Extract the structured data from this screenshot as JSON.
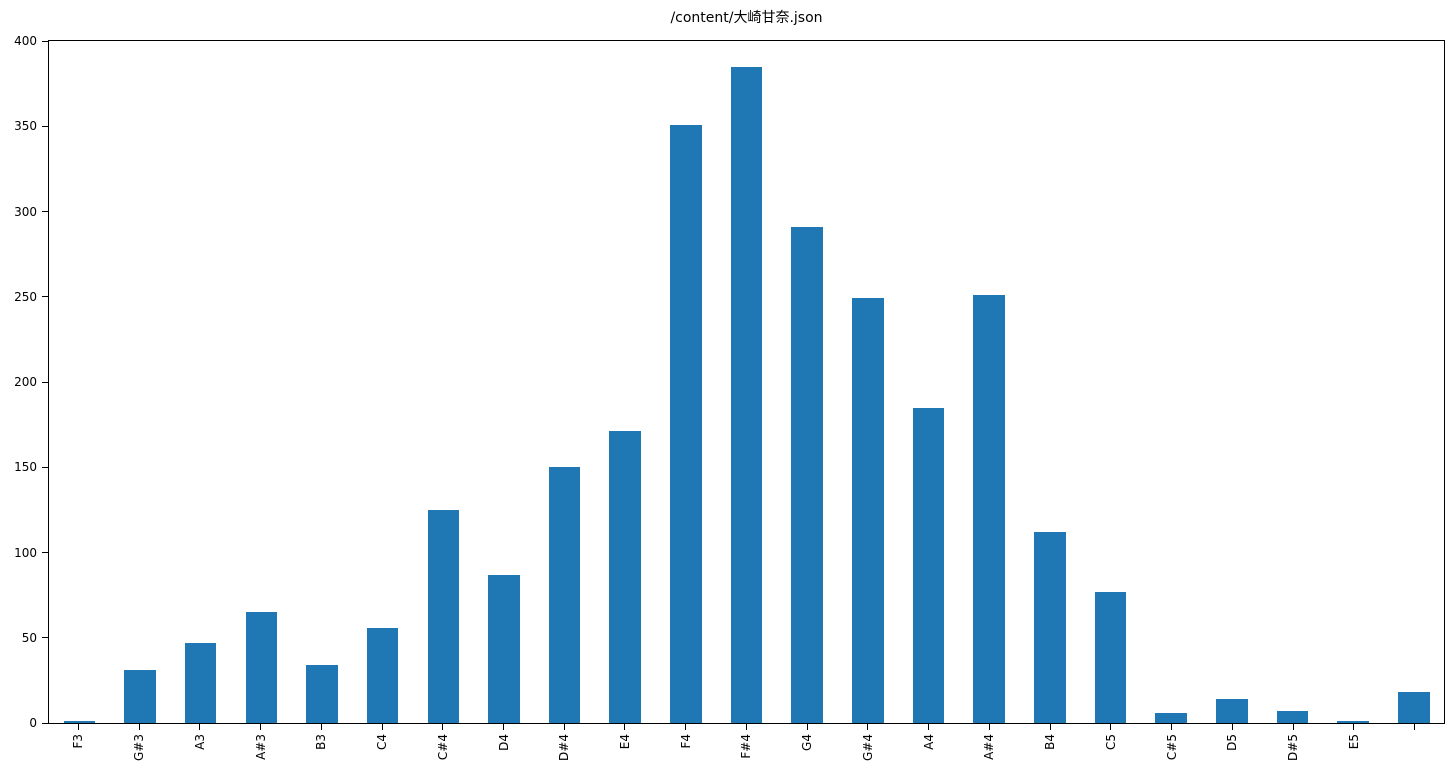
{
  "chart_data": {
    "type": "bar",
    "title": "/content/大崎甘奈.json",
    "categories": [
      "F3",
      "G#3",
      "A3",
      "A#3",
      "B3",
      "C4",
      "C#4",
      "D4",
      "D#4",
      "E4",
      "F4",
      "F#4",
      "G4",
      "G#4",
      "A4",
      "A#4",
      "B4",
      "C5",
      "C#5",
      "D5",
      "D#5",
      "E5",
      ""
    ],
    "values": [
      1,
      31,
      47,
      65,
      34,
      56,
      125,
      87,
      150,
      171,
      351,
      385,
      291,
      249,
      185,
      251,
      112,
      77,
      6,
      14,
      7,
      1,
      18
    ],
    "xlabel": "",
    "ylabel": "",
    "ylim": [
      0,
      400
    ],
    "yticks": [
      0,
      50,
      100,
      150,
      200,
      250,
      300,
      350,
      400
    ],
    "xtick_rotation_deg": 90,
    "bar_color": "#1f77b4",
    "spine_color": "#000000",
    "background_color": "#ffffff",
    "grid": false,
    "legend_position": "none"
  }
}
